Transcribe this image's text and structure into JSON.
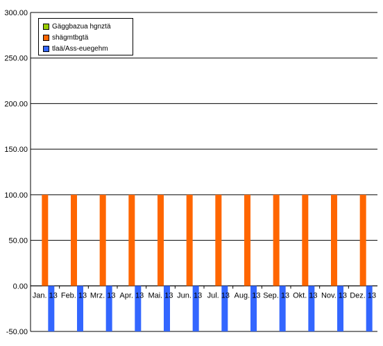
{
  "chart_data": {
    "type": "bar",
    "categories": [
      "Jan. 13",
      "Feb. 13",
      "Mrz. 13",
      "Apr. 13",
      "Mai. 13",
      "Jun. 13",
      "Jul. 13",
      "Aug. 13",
      "Sep. 13",
      "Okt. 13",
      "Nov. 13",
      "Dez. 13"
    ],
    "series": [
      {
        "name": "Gäggbazua hgnztä",
        "color": "#99cc00",
        "values": [
          0,
          0,
          0,
          0,
          0,
          0,
          0,
          0,
          0,
          0,
          0,
          0
        ]
      },
      {
        "name": "shägmtbgtä",
        "color": "#ff6600",
        "values": [
          100,
          100,
          100,
          100,
          100,
          100,
          100,
          100,
          100,
          100,
          100,
          100
        ]
      },
      {
        "name": "tlaä/Ass-euegehm",
        "color": "#3366ff",
        "values": [
          -50,
          -50,
          -50,
          -50,
          -50,
          -50,
          -50,
          -50,
          -50,
          -50,
          -50,
          -50
        ]
      }
    ],
    "ylim": [
      -50,
      300
    ],
    "yticks": [
      "300.00",
      "250.00",
      "200.00",
      "150.00",
      "100.00",
      "50.00",
      "0.00",
      "-50.00"
    ],
    "grid": true,
    "legend_position": "top-left",
    "title": "",
    "xlabel": "",
    "ylabel": ""
  }
}
